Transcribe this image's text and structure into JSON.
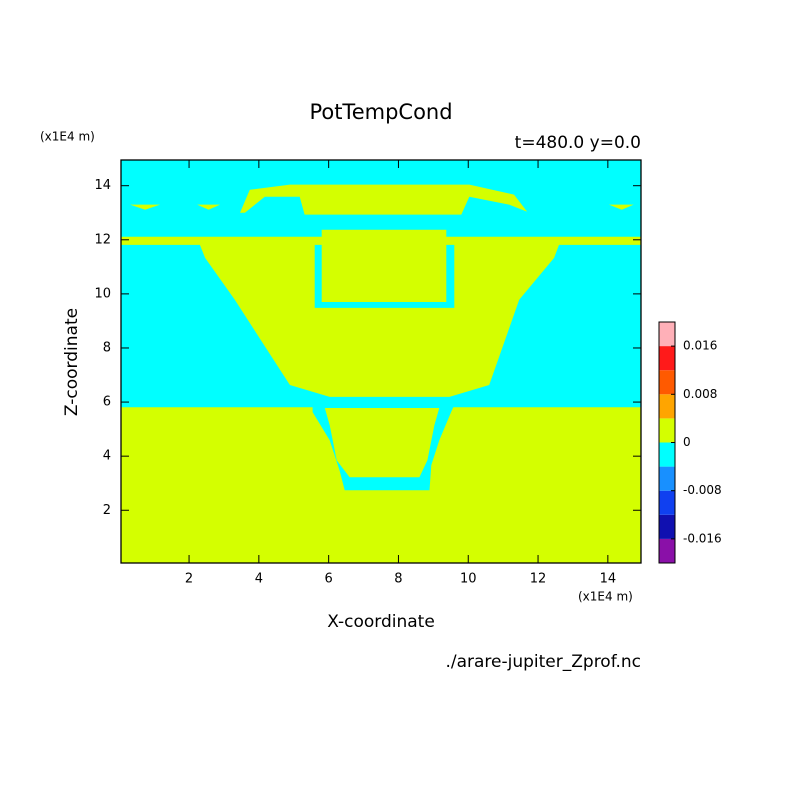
{
  "chart_data": {
    "type": "contourf",
    "title": "PotTempCond",
    "subtitle": "t=480.0 y=0.0",
    "x_label": "X-coordinate",
    "y_label": "Z-coordinate",
    "x_unit": "(x1E4 m)",
    "y_unit": "(x1E4 m)",
    "source": "./arare-jupiter_Zprof.nc",
    "xlim": [
      0.05,
      14.95
    ],
    "ylim": [
      0.05,
      14.95
    ],
    "xticks": [
      2,
      4,
      6,
      8,
      10,
      12,
      14
    ],
    "yticks": [
      2,
      4,
      6,
      8,
      10,
      12,
      14
    ],
    "levels": [
      -0.02,
      -0.016,
      -0.012,
      -0.008,
      -0.004,
      0,
      0.004,
      0.008,
      0.012,
      0.016,
      0.02
    ],
    "colors": [
      "#8a10a8",
      "#1010b0",
      "#1040f0",
      "#1890ff",
      "#00ffff",
      "#d4ff00",
      "#ffa500",
      "#ff5a00",
      "#ff1a1a",
      "#ffb0b8"
    ],
    "cbar_ticks": [
      -0.016,
      -0.008,
      0,
      0.008,
      0.016
    ],
    "background_bin": 5,
    "regions": [
      {
        "bin": 4,
        "points": [
          [
            0.05,
            5.81
          ],
          [
            14.95,
            5.81
          ],
          [
            14.95,
            14.95
          ],
          [
            0.05,
            14.95
          ]
        ]
      },
      {
        "bin": 5,
        "points": [
          [
            0.05,
            12.11
          ],
          [
            14.95,
            12.11
          ],
          [
            14.95,
            11.81
          ],
          [
            12.6,
            11.81
          ],
          [
            12.46,
            11.33
          ],
          [
            11.46,
            9.78
          ],
          [
            10.6,
            6.63
          ],
          [
            9.46,
            6.19
          ],
          [
            6.03,
            6.19
          ],
          [
            4.89,
            6.63
          ],
          [
            3.31,
            9.78
          ],
          [
            2.46,
            11.33
          ],
          [
            2.31,
            11.81
          ],
          [
            0.05,
            11.81
          ]
        ]
      },
      {
        "bin": 4,
        "points": [
          [
            5.6,
            9.48
          ],
          [
            9.6,
            9.48
          ],
          [
            9.6,
            11.81
          ],
          [
            5.6,
            11.81
          ]
        ]
      },
      {
        "bin": 5,
        "points": [
          [
            5.8,
            9.7
          ],
          [
            9.37,
            9.7
          ],
          [
            9.37,
            12.37
          ],
          [
            5.8,
            12.37
          ]
        ]
      },
      {
        "bin": 5,
        "points": [
          [
            3.46,
            13.0
          ],
          [
            3.74,
            13.85
          ],
          [
            4.89,
            14.04
          ],
          [
            10.03,
            14.04
          ],
          [
            11.31,
            13.67
          ],
          [
            11.69,
            13.04
          ],
          [
            11.17,
            13.3
          ],
          [
            10.03,
            13.59
          ],
          [
            9.8,
            12.93
          ],
          [
            5.31,
            12.93
          ],
          [
            5.17,
            13.59
          ],
          [
            4.17,
            13.59
          ],
          [
            3.6,
            13.0
          ]
        ]
      },
      {
        "bin": 5,
        "points": [
          [
            0.31,
            13.3
          ],
          [
            1.17,
            13.3
          ],
          [
            0.74,
            13.11
          ]
        ]
      },
      {
        "bin": 5,
        "points": [
          [
            2.23,
            13.3
          ],
          [
            2.89,
            13.3
          ],
          [
            2.56,
            13.11
          ]
        ]
      },
      {
        "bin": 5,
        "points": [
          [
            14.03,
            13.3
          ],
          [
            14.74,
            13.3
          ],
          [
            14.4,
            13.11
          ]
        ]
      },
      {
        "bin": 4,
        "points": [
          [
            5.54,
            5.89
          ],
          [
            9.6,
            5.89
          ],
          [
            9.51,
            5.63
          ],
          [
            9.17,
            4.59
          ],
          [
            8.94,
            3.67
          ],
          [
            8.89,
            2.74
          ],
          [
            6.46,
            2.74
          ],
          [
            6.31,
            3.48
          ],
          [
            6.03,
            4.59
          ],
          [
            5.54,
            5.63
          ]
        ]
      },
      {
        "bin": 5,
        "points": [
          [
            5.89,
            5.78
          ],
          [
            9.17,
            5.78
          ],
          [
            9.03,
            5.15
          ],
          [
            8.83,
            3.85
          ],
          [
            8.6,
            3.22
          ],
          [
            6.6,
            3.22
          ],
          [
            6.23,
            3.85
          ],
          [
            6.03,
            5.15
          ]
        ]
      }
    ]
  }
}
